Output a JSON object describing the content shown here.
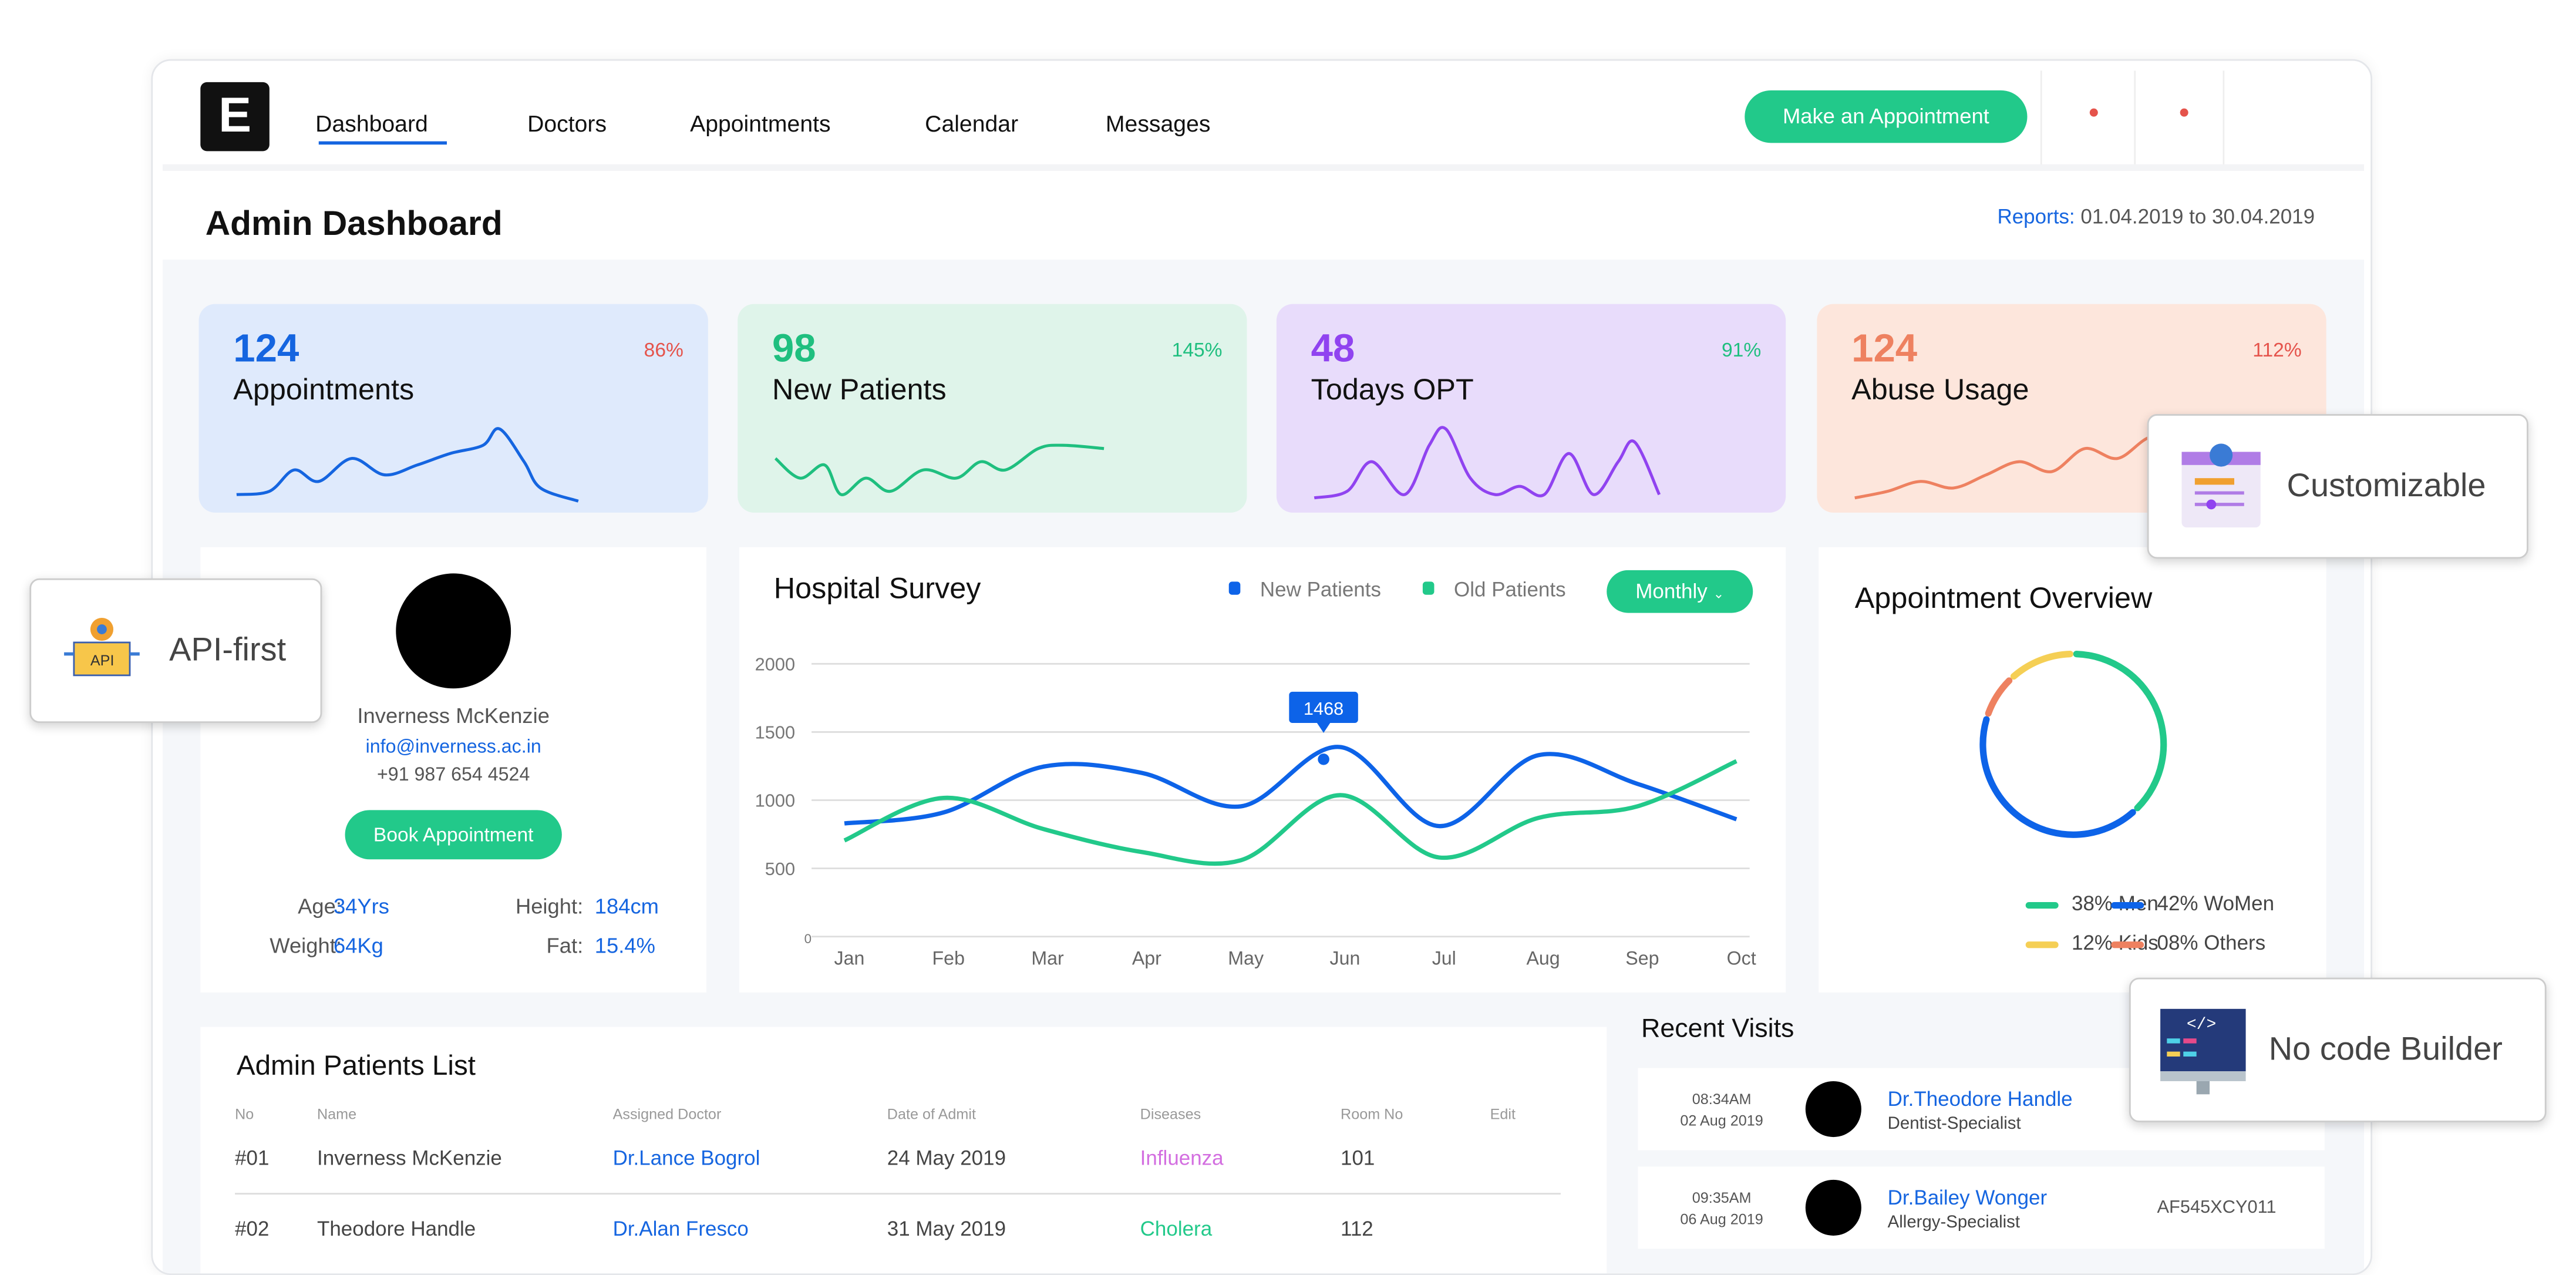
{
  "header": {
    "logo": "E",
    "nav": [
      "Dashboard",
      "Doctors",
      "Appointments",
      "Calendar",
      "Messages"
    ],
    "active_nav": "Dashboard",
    "cta": "Make an Appointment"
  },
  "page": {
    "title": "Admin Dashboard",
    "reports_label": "Reports:",
    "reports_range": "01.04.2019 to 30.04.2019"
  },
  "stats": [
    {
      "value": "124",
      "label": "Appointments",
      "change": "86%",
      "color": "#1565e0",
      "bg": "#dfeafc",
      "change_color": "#e5534b"
    },
    {
      "value": "98",
      "label": "New Patients",
      "change": "145%",
      "color": "#1fbf7f",
      "bg": "#dff4ea",
      "change_color": "#1fbf7f"
    },
    {
      "value": "48",
      "label": "Todays OPT",
      "change": "91%",
      "color": "#9043f0",
      "bg": "#e8dcfb",
      "change_color": "#1fbf7f"
    },
    {
      "value": "124",
      "label": "Abuse Usage",
      "change": "112%",
      "color": "#ee8160",
      "bg": "#fde6dc",
      "change_color": "#e5534b"
    }
  ],
  "profile": {
    "name": "Inverness McKenzie",
    "email": "info@inverness.ac.in",
    "phone": "+91 987 654 4524",
    "button": "Book Appointment",
    "age_label": "Age:",
    "age": "34Yrs",
    "height_label": "Height:",
    "height": "184cm",
    "weight_label": "Weight:",
    "weight": "64Kg",
    "fat_label": "Fat:",
    "fat": "15.4%"
  },
  "survey": {
    "title": "Hospital Survey",
    "period": "Monthly",
    "tooltip": "1468"
  },
  "chart_data": {
    "type": "line",
    "categories": [
      "Jan",
      "Feb",
      "Mar",
      "Apr",
      "May",
      "Jun",
      "Jul",
      "Aug",
      "Sep",
      "Oct"
    ],
    "ylim": [
      0,
      2000
    ],
    "yticks": [
      "0",
      "500",
      "1000",
      "1500",
      "2000"
    ],
    "grid": true,
    "legend": "top-right",
    "series": [
      {
        "name": "New Patients",
        "color": "#0d63e8",
        "values": [
          830,
          910,
          1245,
          1200,
          955,
          1390,
          810,
          1330,
          1120,
          860
        ]
      },
      {
        "name": "Old Patients",
        "color": "#22c98a",
        "values": [
          705,
          1017,
          790,
          620,
          560,
          1037,
          580,
          870,
          955,
          1286
        ]
      }
    ]
  },
  "overview": {
    "title": "Appointment Overview",
    "legend": [
      {
        "label": "38% Men",
        "color": "#22c98a",
        "value": 38
      },
      {
        "label": "42% WoMen",
        "color": "#0d63e8",
        "value": 42
      },
      {
        "label": "12% Kids",
        "color": "#f5cf55",
        "value": 12
      },
      {
        "label": "08% Others",
        "color": "#ee8160",
        "value": 8
      }
    ]
  },
  "patients": {
    "title": "Admin Patients List",
    "headers": [
      "No",
      "Name",
      "Assigned Doctor",
      "Date of Admit",
      "Diseases",
      "Room No",
      "Edit"
    ],
    "rows": [
      {
        "no": "#01",
        "name": "Inverness McKenzie",
        "doctor": "Dr.Lance Bogrol",
        "date": "24 May 2019",
        "disease": "Influenza",
        "disease_color": "#d36ee0",
        "room": "101"
      },
      {
        "no": "#02",
        "name": "Theodore Handle",
        "doctor": "Dr.Alan Fresco",
        "date": "31 May 2019",
        "disease": "Cholera",
        "disease_color": "#22c98a",
        "room": "112"
      }
    ]
  },
  "visits": {
    "title": "Recent Visits",
    "items": [
      {
        "time": "08:34AM",
        "date": "02 Aug 2019",
        "doctor": "Dr.Theodore Handle",
        "specialty": "Dentist-Specialist",
        "code": ""
      },
      {
        "time": "09:35AM",
        "date": "06 Aug 2019",
        "doctor": "Dr.Bailey Wonger",
        "specialty": "Allergy-Specialist",
        "code": "AF545XCY011"
      }
    ]
  },
  "badges": {
    "api": "API-first",
    "custom": "Customizable",
    "nocode": "No code Builder"
  }
}
